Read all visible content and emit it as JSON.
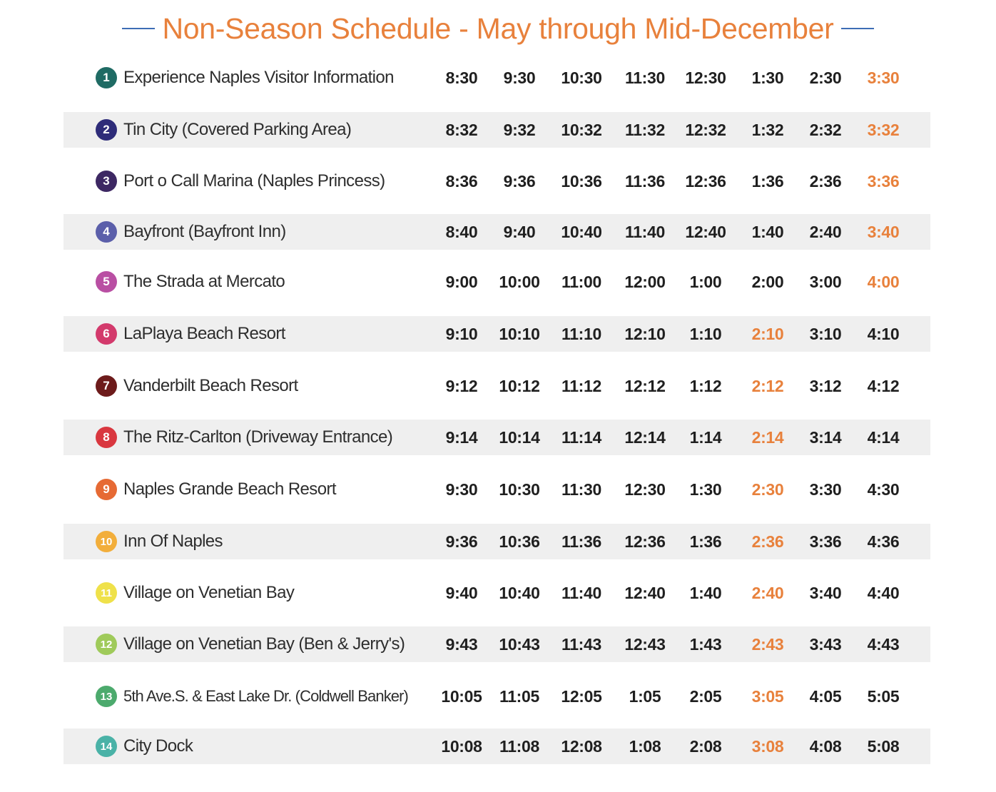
{
  "title": "Non-Season Schedule - May through Mid-December",
  "colors": {
    "accent": "#e8813c",
    "header_line": "#3d6db5",
    "row_shade": "#efefef"
  },
  "stops": [
    {
      "num": "1",
      "name": "Experience Naples Visitor Information",
      "color": "#1f6b64",
      "times": [
        "8:30",
        "9:30",
        "10:30",
        "11:30",
        "12:30",
        "1:30",
        "2:30",
        "3:30"
      ],
      "highlight_index": 7
    },
    {
      "num": "2",
      "name": "Tin City (Covered Parking Area)",
      "color": "#2e2c79",
      "times": [
        "8:32",
        "9:32",
        "10:32",
        "11:32",
        "12:32",
        "1:32",
        "2:32",
        "3:32"
      ],
      "highlight_index": 7
    },
    {
      "num": "3",
      "name": "Port o Call Marina (Naples Princess)",
      "color": "#3d2863",
      "times": [
        "8:36",
        "9:36",
        "10:36",
        "11:36",
        "12:36",
        "1:36",
        "2:36",
        "3:36"
      ],
      "highlight_index": 7
    },
    {
      "num": "4",
      "name": "Bayfront (Bayfront Inn)",
      "color": "#5b5faa",
      "times": [
        "8:40",
        "9:40",
        "10:40",
        "11:40",
        "12:40",
        "1:40",
        "2:40",
        "3:40"
      ],
      "highlight_index": 7
    },
    {
      "num": "5",
      "name": "The Strada at Mercato",
      "color": "#b94fa3",
      "times": [
        "9:00",
        "10:00",
        "11:00",
        "12:00",
        "1:00",
        "2:00",
        "3:00",
        "4:00"
      ],
      "highlight_index": 7
    },
    {
      "num": "6",
      "name": "LaPlaya Beach Resort",
      "color": "#d33a6c",
      "times": [
        "9:10",
        "10:10",
        "11:10",
        "12:10",
        "1:10",
        "2:10",
        "3:10",
        "4:10"
      ],
      "highlight_index": 5
    },
    {
      "num": "7",
      "name": "Vanderbilt Beach Resort",
      "color": "#6d1b1b",
      "times": [
        "9:12",
        "10:12",
        "11:12",
        "12:12",
        "1:12",
        "2:12",
        "3:12",
        "4:12"
      ],
      "highlight_index": 5
    },
    {
      "num": "8",
      "name": "The Ritz-Carlton (Driveway Entrance)",
      "color": "#d9373f",
      "times": [
        "9:14",
        "10:14",
        "11:14",
        "12:14",
        "1:14",
        "2:14",
        "3:14",
        "4:14"
      ],
      "highlight_index": 5
    },
    {
      "num": "9",
      "name": "Naples Grande Beach Resort",
      "color": "#e66a34",
      "times": [
        "9:30",
        "10:30",
        "11:30",
        "12:30",
        "1:30",
        "2:30",
        "3:30",
        "4:30"
      ],
      "highlight_index": 5
    },
    {
      "num": "10",
      "name": "Inn Of Naples",
      "color": "#f2ae3b",
      "times": [
        "9:36",
        "10:36",
        "11:36",
        "12:36",
        "1:36",
        "2:36",
        "3:36",
        "4:36"
      ],
      "highlight_index": 5
    },
    {
      "num": "11",
      "name": "Village on Venetian Bay",
      "color": "#efe14a",
      "times": [
        "9:40",
        "10:40",
        "11:40",
        "12:40",
        "1:40",
        "2:40",
        "3:40",
        "4:40"
      ],
      "highlight_index": 5
    },
    {
      "num": "12",
      "name": "Village on Venetian Bay (Ben & Jerry's)",
      "color": "#9fca5a",
      "times": [
        "9:43",
        "10:43",
        "11:43",
        "12:43",
        "1:43",
        "2:43",
        "3:43",
        "4:43"
      ],
      "highlight_index": 5
    },
    {
      "num": "13",
      "name": "5th Ave.S. & East Lake Dr. (Coldwell Banker)",
      "color": "#4caa6d",
      "times": [
        "10:05",
        "11:05",
        "12:05",
        "1:05",
        "2:05",
        "3:05",
        "4:05",
        "5:05"
      ],
      "highlight_index": 5
    },
    {
      "num": "14",
      "name": "City Dock",
      "color": "#4ab2a7",
      "times": [
        "10:08",
        "11:08",
        "12:08",
        "1:08",
        "2:08",
        "3:08",
        "4:08",
        "5:08"
      ],
      "highlight_index": 5
    }
  ]
}
